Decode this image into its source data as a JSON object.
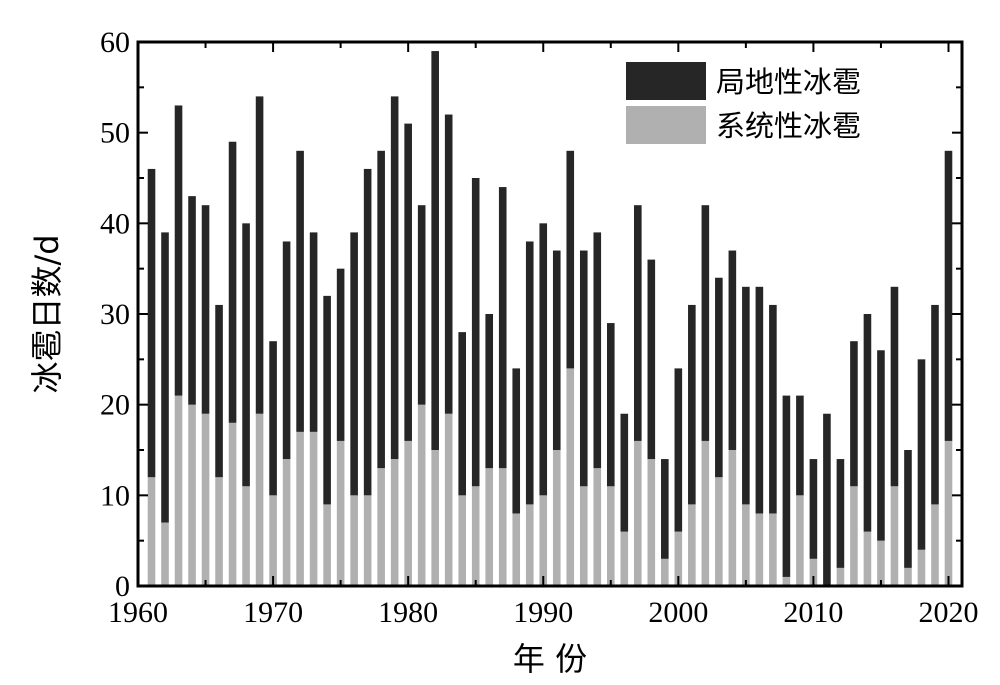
{
  "chart_data": {
    "type": "bar",
    "stacked": true,
    "title": "",
    "xlabel": "年 份",
    "ylabel": "冰雹日数/d",
    "xlim": [
      1960,
      2021
    ],
    "ylim": [
      0,
      60
    ],
    "x_ticks": [
      1960,
      1970,
      1980,
      1990,
      2000,
      2010,
      2020
    ],
    "y_ticks": [
      0,
      10,
      20,
      30,
      40,
      50,
      60
    ],
    "grid": false,
    "legend_position": "top-right",
    "categories": [
      1961,
      1962,
      1963,
      1964,
      1965,
      1966,
      1967,
      1968,
      1969,
      1970,
      1971,
      1972,
      1973,
      1974,
      1975,
      1976,
      1977,
      1978,
      1979,
      1980,
      1981,
      1982,
      1983,
      1984,
      1985,
      1986,
      1987,
      1988,
      1989,
      1990,
      1991,
      1992,
      1993,
      1994,
      1995,
      1996,
      1997,
      1998,
      1999,
      2000,
      2001,
      2002,
      2003,
      2004,
      2005,
      2006,
      2007,
      2008,
      2009,
      2010,
      2011,
      2012,
      2013,
      2014,
      2015,
      2016,
      2017,
      2018,
      2019,
      2020
    ],
    "series": [
      {
        "name": "系统性冰雹",
        "color": "#b0b0b0",
        "values": [
          12,
          7,
          21,
          20,
          19,
          12,
          18,
          11,
          19,
          10,
          14,
          17,
          17,
          9,
          16,
          10,
          10,
          13,
          14,
          16,
          20,
          15,
          19,
          10,
          11,
          13,
          13,
          8,
          9,
          10,
          15,
          24,
          11,
          13,
          11,
          6,
          16,
          14,
          3,
          6,
          9,
          16,
          12,
          15,
          9,
          8,
          8,
          1,
          10,
          3,
          0,
          2,
          11,
          6,
          5,
          11,
          2,
          4,
          9,
          16
        ]
      },
      {
        "name": "局地性冰雹",
        "color": "#262626",
        "values": [
          34,
          32,
          32,
          23,
          23,
          19,
          31,
          29,
          35,
          17,
          24,
          31,
          22,
          23,
          19,
          29,
          36,
          35,
          40,
          35,
          22,
          44,
          33,
          18,
          34,
          17,
          31,
          16,
          29,
          30,
          22,
          24,
          26,
          26,
          18,
          13,
          26,
          22,
          11,
          18,
          22,
          26,
          22,
          22,
          24,
          25,
          23,
          20,
          11,
          11,
          19,
          12,
          16,
          24,
          21,
          22,
          13,
          21,
          22,
          32
        ]
      }
    ]
  }
}
